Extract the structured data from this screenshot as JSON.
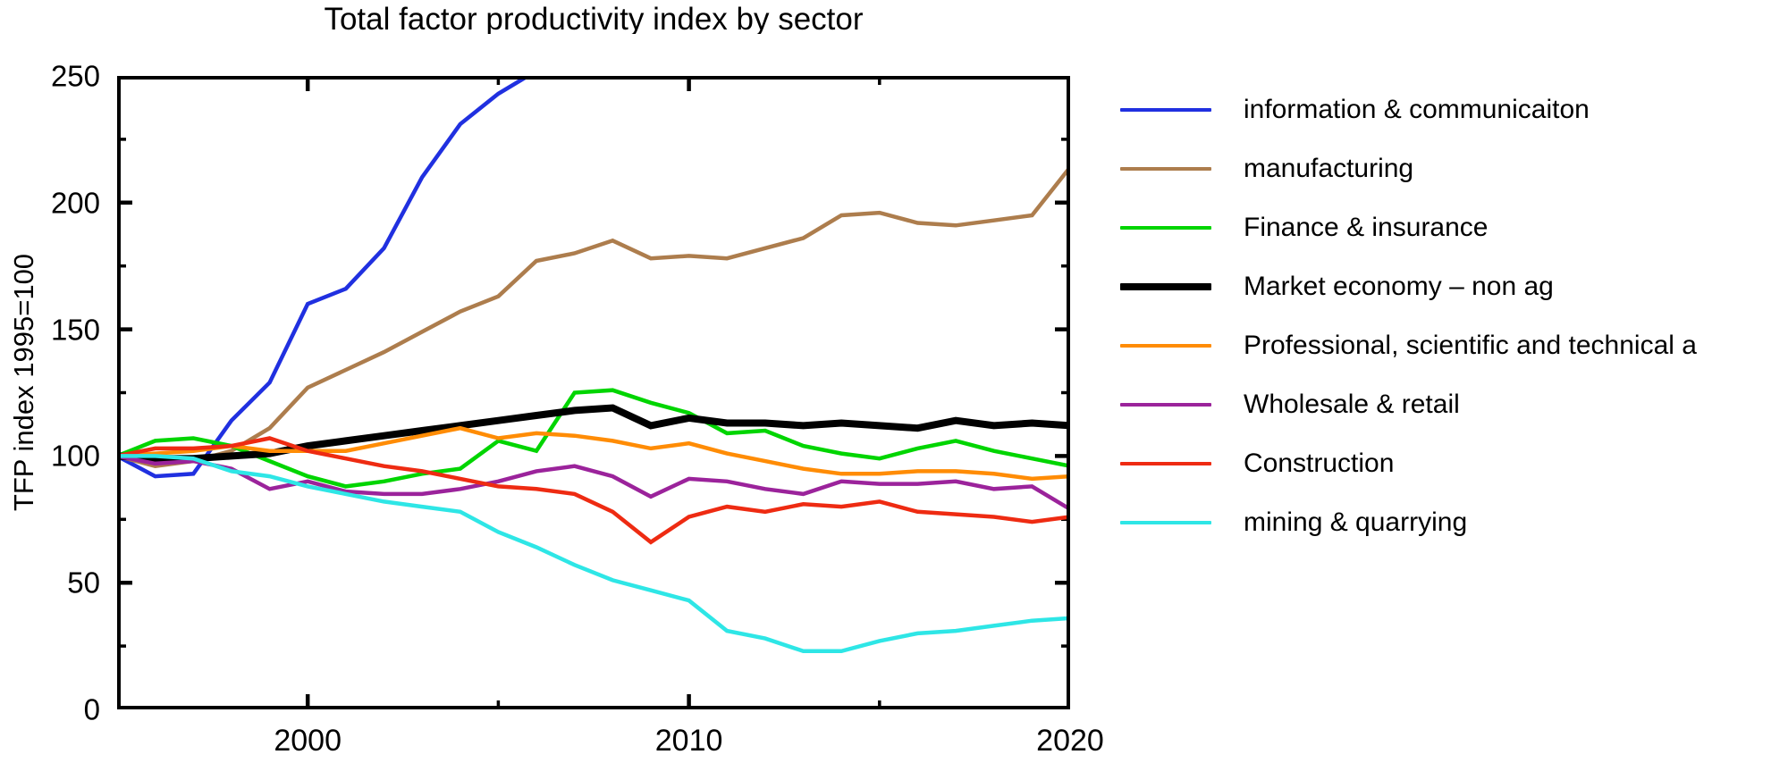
{
  "title": "Total factor productivity index by sector",
  "ylabel": "TFP index 1995=100",
  "chart_data": {
    "type": "line",
    "x": [
      1995,
      1996,
      1997,
      1998,
      1999,
      2000,
      2001,
      2002,
      2003,
      2004,
      2005,
      2006,
      2007,
      2008,
      2009,
      2010,
      2011,
      2012,
      2013,
      2014,
      2015,
      2016,
      2017,
      2018,
      2019,
      2020
    ],
    "xlim": [
      1995,
      2020
    ],
    "ylim": [
      0,
      250
    ],
    "grid": false,
    "legend_position": "right",
    "xticks_major": [
      2000,
      2010,
      2020
    ],
    "xticks_minor": [
      2005,
      2015
    ],
    "xtick_labels": [
      "2000",
      "2010",
      "2020"
    ],
    "yticks_major": [
      0,
      50,
      100,
      150,
      200,
      250
    ],
    "yticks_minor": [
      25,
      75,
      125,
      175,
      225
    ],
    "ytick_labels": [
      "0",
      "50",
      "100",
      "150",
      "200",
      "250"
    ],
    "frame_color": "#000000",
    "series": [
      {
        "name": "information & communicaiton",
        "color": "#2030e0",
        "line_width": 4.5,
        "values": [
          100,
          92,
          93,
          114,
          129,
          160,
          166,
          182,
          210,
          231,
          243,
          252,
          null,
          null,
          null,
          null,
          null,
          null,
          null,
          null,
          null,
          null,
          null,
          null,
          null,
          null
        ]
      },
      {
        "name": "manufacturing",
        "color": "#ad7d4d",
        "line_width": 4.5,
        "values": [
          100,
          96,
          98,
          102,
          111,
          127,
          134,
          141,
          149,
          157,
          163,
          177,
          180,
          185,
          178,
          179,
          178,
          182,
          186,
          195,
          196,
          192,
          191,
          193,
          195,
          214
        ]
      },
      {
        "name": "Finance & insurance",
        "color": "#00d500",
        "line_width": 4.5,
        "values": [
          100,
          106,
          107,
          104,
          98,
          92,
          88,
          90,
          93,
          95,
          106,
          102,
          125,
          126,
          121,
          117,
          109,
          110,
          104,
          101,
          99,
          103,
          106,
          102,
          99,
          96
        ]
      },
      {
        "name": "Market economy – non ag",
        "color": "#000000",
        "line_width": 8,
        "values": [
          100,
          99,
          99,
          100,
          101,
          104,
          106,
          108,
          110,
          112,
          114,
          116,
          118,
          119,
          112,
          115,
          113,
          113,
          112,
          113,
          112,
          111,
          114,
          112,
          113,
          112
        ]
      },
      {
        "name": "Professional, scientific and technical a",
        "color": "#ff8c05",
        "line_width": 4.5,
        "values": [
          100,
          101,
          102,
          104,
          102,
          102,
          102,
          105,
          108,
          111,
          107,
          109,
          108,
          106,
          103,
          105,
          101,
          98,
          95,
          93,
          93,
          94,
          94,
          93,
          91,
          92
        ]
      },
      {
        "name": "Wholesale & retail",
        "color": "#9b239b",
        "line_width": 4.5,
        "values": [
          100,
          97,
          98,
          95,
          87,
          90,
          86,
          85,
          85,
          87,
          90,
          94,
          96,
          92,
          84,
          91,
          90,
          87,
          85,
          90,
          89,
          89,
          90,
          87,
          88,
          79
        ]
      },
      {
        "name": "Construction",
        "color": "#ee2b12",
        "line_width": 4.5,
        "values": [
          100,
          103,
          103,
          104,
          107,
          102,
          99,
          96,
          94,
          91,
          88,
          87,
          85,
          78,
          66,
          76,
          80,
          78,
          81,
          80,
          82,
          78,
          77,
          76,
          74,
          76
        ]
      },
      {
        "name": "mining & quarrying",
        "color": "#2ee6e6",
        "line_width": 4.5,
        "values": [
          100,
          100,
          99,
          94,
          92,
          88,
          85,
          82,
          80,
          78,
          70,
          64,
          57,
          51,
          47,
          43,
          31,
          28,
          23,
          23,
          27,
          30,
          31,
          33,
          35,
          36
        ]
      }
    ]
  }
}
